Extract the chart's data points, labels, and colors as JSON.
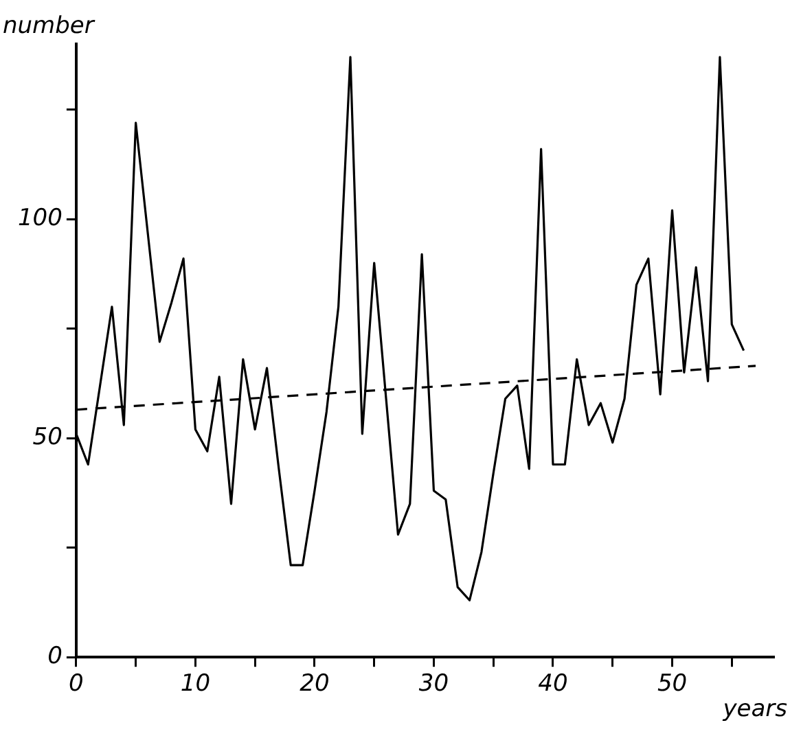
{
  "chart_data": {
    "type": "line",
    "xlabel": "years",
    "ylabel": "number",
    "xlim": [
      0,
      58.5
    ],
    "xticks": [
      0,
      {
        "value": 5,
        "label": null
      },
      10,
      {
        "value": 15,
        "label": null
      },
      20,
      {
        "value": 25,
        "label": null
      },
      30,
      {
        "value": 35,
        "label": null
      },
      40,
      {
        "value": 45,
        "label": null
      },
      50,
      {
        "value": 55,
        "label": null
      }
    ],
    "ylim": [
      0,
      140
    ],
    "yticks": [
      0,
      {
        "value": 25,
        "label": null
      },
      50,
      {
        "value": 75,
        "label": null
      },
      100,
      {
        "value": 125,
        "label": null
      }
    ],
    "grid": false,
    "legend": false,
    "marker": "none",
    "series": [
      {
        "color": "#000000",
        "line_style": "solid",
        "x": [
          0,
          1,
          2,
          3,
          4,
          5,
          6,
          7,
          8,
          9,
          10,
          11,
          12,
          13,
          14,
          15,
          16,
          17,
          18,
          19,
          20,
          21,
          22,
          23,
          24,
          25,
          26,
          27,
          28,
          29,
          30,
          31,
          32,
          33,
          34,
          35,
          36,
          37,
          38,
          39,
          40,
          41,
          42,
          43,
          44,
          45,
          46,
          47,
          48,
          49,
          50,
          51,
          52,
          53,
          54,
          55,
          56
        ],
        "values": [
          51,
          44,
          62,
          80,
          53,
          122,
          97,
          72,
          81,
          91,
          52,
          47,
          64,
          35,
          68,
          52,
          66,
          43,
          21,
          21,
          38,
          56,
          80,
          137,
          51,
          90,
          59,
          28,
          35,
          92,
          38,
          36,
          16,
          13,
          24,
          42,
          59,
          62,
          43,
          116,
          44,
          44,
          68,
          53,
          58,
          49,
          59,
          85,
          91,
          60,
          102,
          65,
          89,
          63,
          137,
          76,
          70
        ]
      },
      {
        "color": "#000000",
        "line_style": "dashed",
        "x": [
          0,
          57
        ],
        "values": [
          56.5,
          66.5
        ]
      }
    ]
  }
}
